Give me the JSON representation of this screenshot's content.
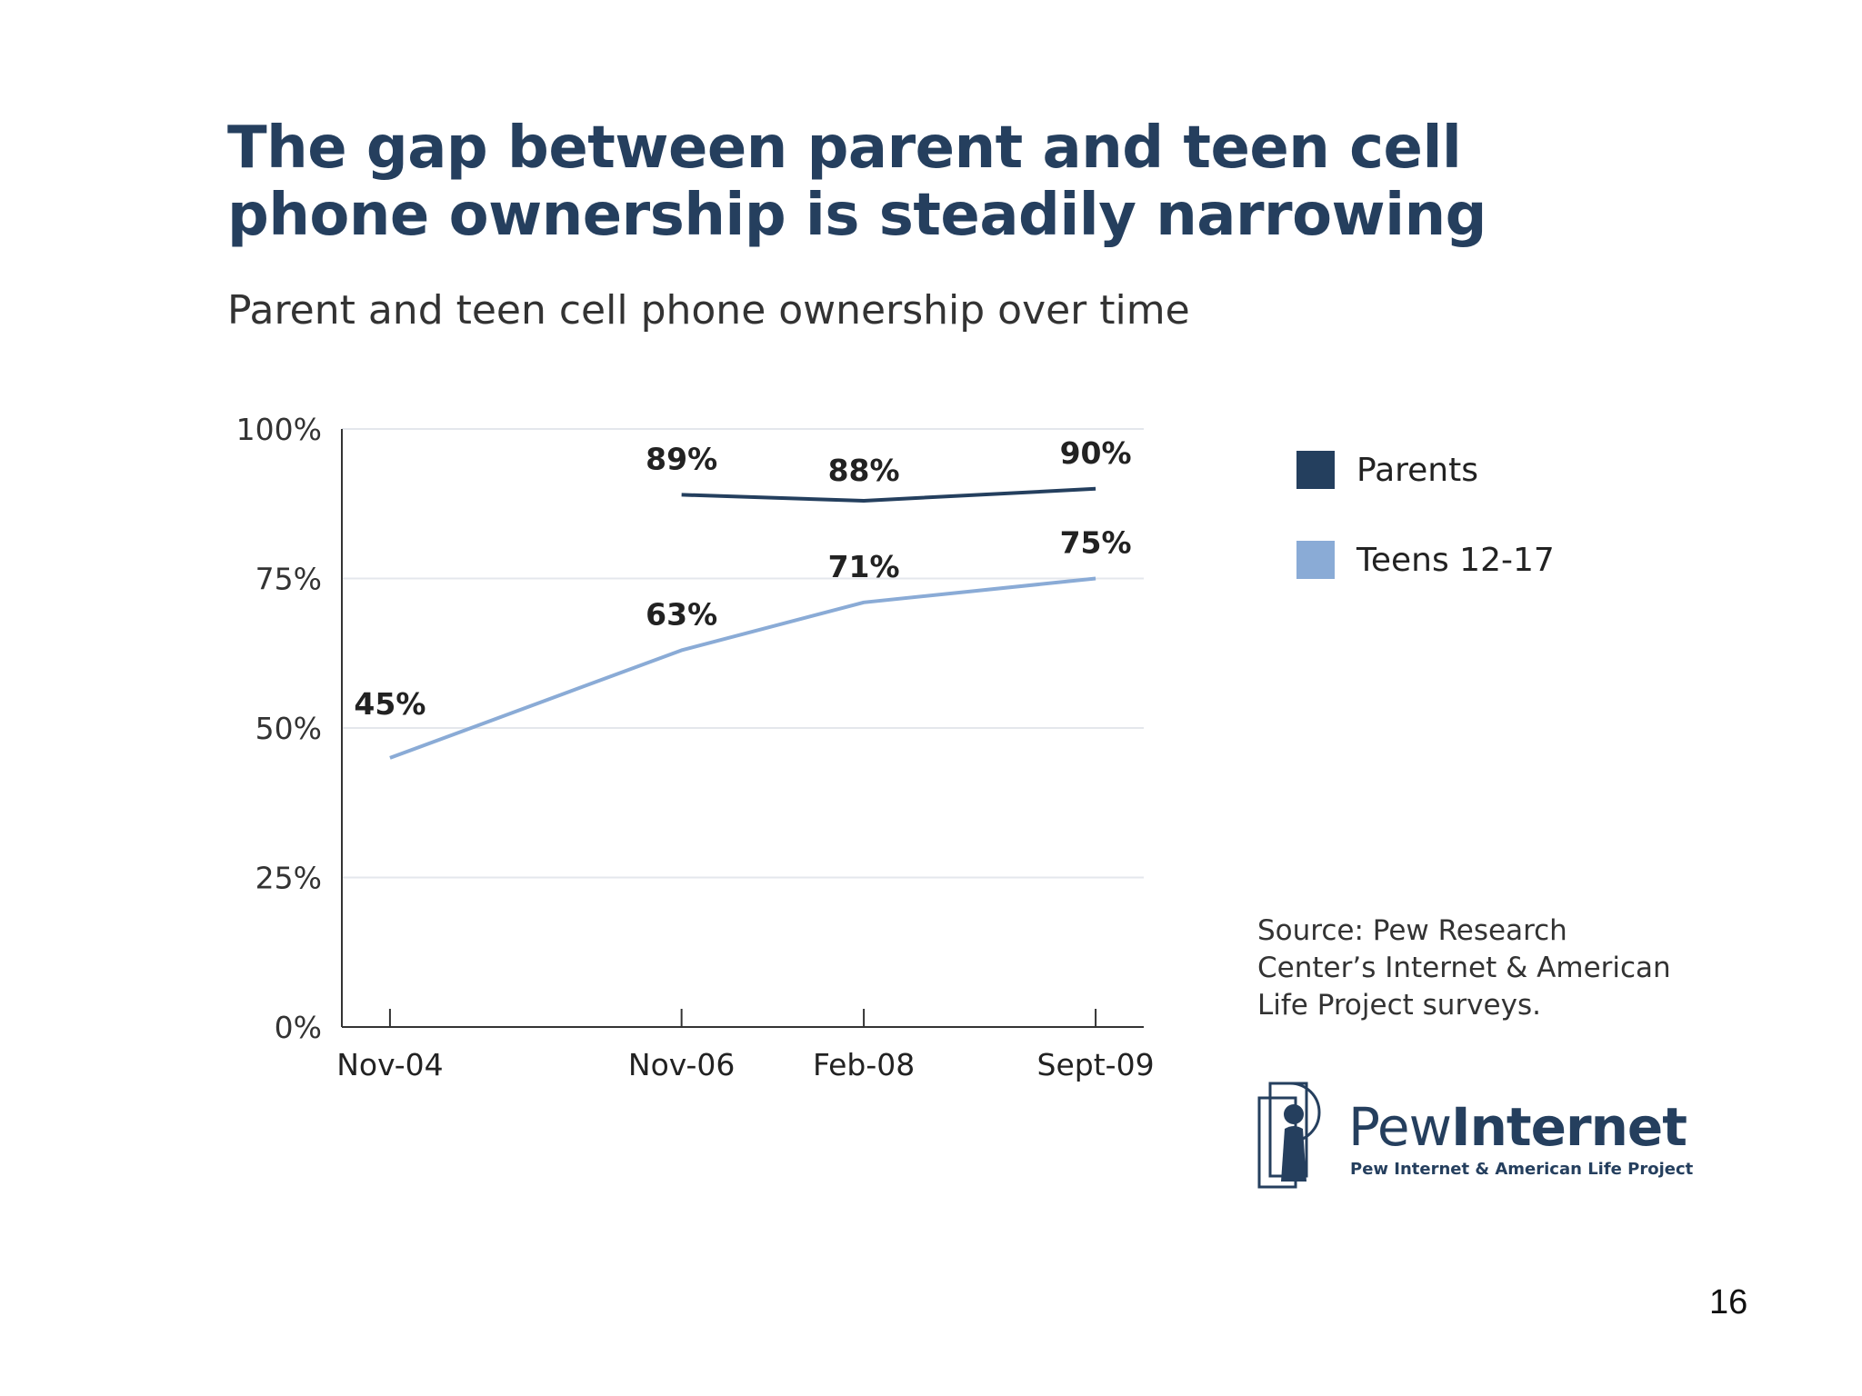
{
  "slide": {
    "title": "The gap between parent and teen cell phone ownership is steadily narrowing",
    "page_number": "16"
  },
  "chart_data": {
    "type": "line",
    "title": "Parent and teen cell phone ownership over time",
    "xlabel": "",
    "ylabel": "",
    "categories": [
      "Nov-04",
      "Nov-06",
      "Feb-08",
      "Sept-09"
    ],
    "x_positions": [
      2004.83,
      2006.83,
      2008.08,
      2009.67
    ],
    "ylim": [
      0,
      100
    ],
    "yticks": [
      0,
      25,
      50,
      75,
      100
    ],
    "ytick_labels": [
      "0%",
      "25%",
      "50%",
      "75%",
      "100%"
    ],
    "grid": true,
    "legend_position": "right",
    "series": [
      {
        "name": "Parents",
        "color": "#243f5e",
        "values": [
          null,
          89,
          88,
          90
        ],
        "labels": [
          "",
          "89%",
          "88%",
          "90%"
        ]
      },
      {
        "name": "Teens 12-17",
        "color": "#8aabd6",
        "values": [
          45,
          63,
          71,
          75
        ],
        "labels": [
          "45%",
          "63%",
          "71%",
          "75%"
        ]
      }
    ]
  },
  "source": {
    "lines": [
      "Source: Pew Research",
      "Center’s Internet & American",
      "Life Project surveys."
    ]
  },
  "logo": {
    "name_light": "Pew",
    "name_bold": "Internet",
    "tagline": "Pew Internet & American Life Project",
    "icon": "pew-keyhole-person-icon"
  }
}
